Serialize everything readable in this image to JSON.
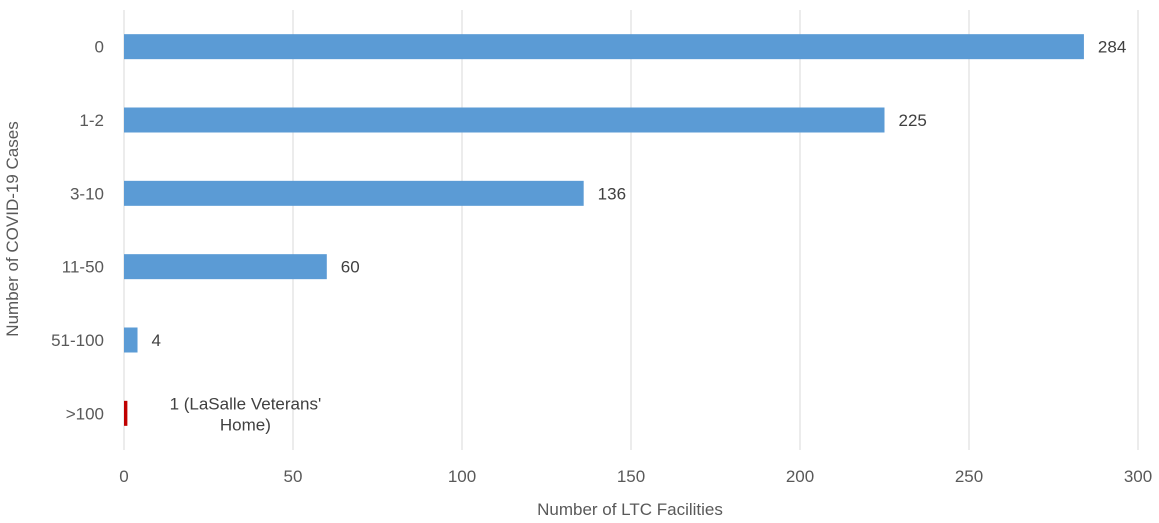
{
  "chart_data": {
    "type": "bar",
    "orientation": "horizontal",
    "categories": [
      "0",
      "1-2",
      "3-10",
      "11-50",
      "51-100",
      ">100"
    ],
    "values": [
      284,
      225,
      136,
      60,
      4,
      1
    ],
    "data_labels": [
      "284",
      "225",
      "136",
      "60",
      "4",
      "1 (LaSalle Veterans' Home)"
    ],
    "bar_colors": [
      "#5b9bd5",
      "#5b9bd5",
      "#5b9bd5",
      "#5b9bd5",
      "#5b9bd5",
      "#c00000"
    ],
    "xlabel": "Number of LTC Facilities",
    "ylabel": "Number of COVID-19 Cases",
    "xlim": [
      0,
      300
    ],
    "x_ticks": [
      0,
      50,
      100,
      150,
      200,
      250,
      300
    ],
    "grid": "vertical",
    "legend": "none"
  }
}
